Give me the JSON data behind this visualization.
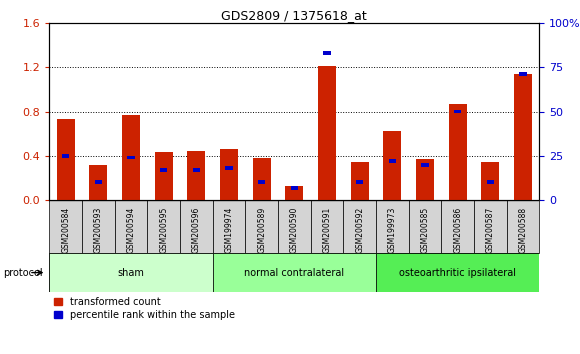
{
  "title": "GDS2809 / 1375618_at",
  "samples": [
    "GSM200584",
    "GSM200593",
    "GSM200594",
    "GSM200595",
    "GSM200596",
    "GSM199974",
    "GSM200589",
    "GSM200590",
    "GSM200591",
    "GSM200592",
    "GSM199973",
    "GSM200585",
    "GSM200586",
    "GSM200587",
    "GSM200588"
  ],
  "red_values": [
    0.73,
    0.32,
    0.77,
    0.43,
    0.44,
    0.46,
    0.38,
    0.13,
    1.21,
    0.34,
    0.62,
    0.37,
    0.87,
    0.34,
    1.14
  ],
  "blue_pct": [
    25,
    10,
    24,
    17,
    17,
    18,
    10,
    7,
    83,
    10,
    22,
    20,
    50,
    10,
    71
  ],
  "ylim_left": [
    0,
    1.6
  ],
  "ylim_right": [
    0,
    100
  ],
  "yticks_left": [
    0,
    0.4,
    0.8,
    1.2,
    1.6
  ],
  "yticks_right": [
    0,
    25,
    50,
    75,
    100
  ],
  "groups": [
    {
      "label": "sham",
      "start": 0,
      "end": 5
    },
    {
      "label": "normal contralateral",
      "start": 5,
      "end": 10
    },
    {
      "label": "osteoarthritic ipsilateral",
      "start": 10,
      "end": 15
    }
  ],
  "group_colors": [
    "#ccffcc",
    "#99ff99",
    "#55ee55"
  ],
  "protocol_label": "protocol",
  "bar_width": 0.55,
  "red_color": "#cc2200",
  "blue_color": "#0000cc",
  "axis_label_color_left": "#cc2200",
  "axis_label_color_right": "#0000cc",
  "legend_red": "transformed count",
  "legend_blue": "percentile rank within the sample",
  "right_ytick_labels": [
    "0",
    "25",
    "50",
    "75",
    "100%"
  ]
}
